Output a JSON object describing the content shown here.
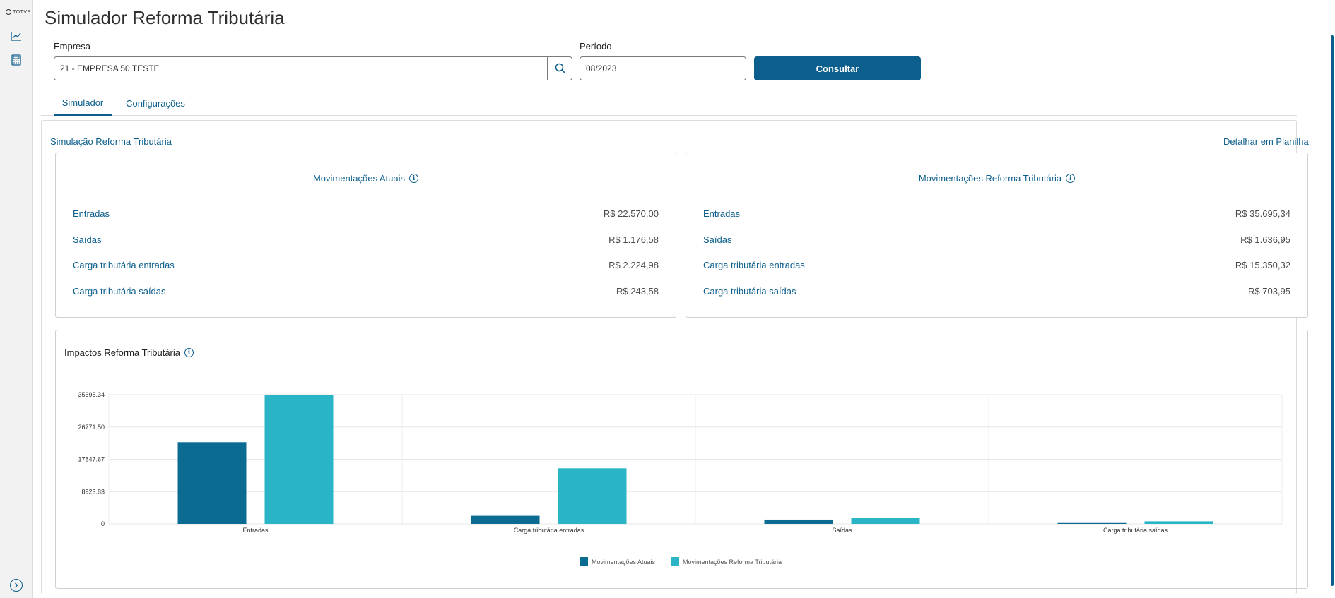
{
  "app": {
    "logo_text": "TOTVS"
  },
  "sidebar": {
    "items": [
      {
        "icon": "chart-line-icon"
      },
      {
        "icon": "calculator-icon"
      }
    ],
    "expand_icon": "chevron-right-icon"
  },
  "page": {
    "title": "Simulador Reforma Tributária"
  },
  "form": {
    "empresa_label": "Empresa",
    "empresa_value": "21 - EMPRESA 50 TESTE",
    "periodo_label": "Período",
    "periodo_value": "08/2023",
    "consultar_label": "Consultar"
  },
  "tabs": [
    {
      "label": "Simulador",
      "active": true
    },
    {
      "label": "Configurações",
      "active": false
    }
  ],
  "simulation": {
    "title": "Simulação Reforma Tributária",
    "detail_link": "Detalhar em Planilha",
    "cards": [
      {
        "title": "Movimentações Atuais",
        "rows": [
          {
            "label": "Entradas",
            "value": "R$ 22.570,00"
          },
          {
            "label": "Saídas",
            "value": "R$ 1.176,58"
          },
          {
            "label": "Carga tributária entradas",
            "value": "R$ 2.224,98"
          },
          {
            "label": "Carga tributária saídas",
            "value": "R$ 243,58"
          }
        ]
      },
      {
        "title": "Movimentações Reforma Tributária",
        "rows": [
          {
            "label": "Entradas",
            "value": "R$ 35.695,34"
          },
          {
            "label": "Saídas",
            "value": "R$ 1.636,95"
          },
          {
            "label": "Carga tributária entradas",
            "value": "R$ 15.350,32"
          },
          {
            "label": "Carga tributária saídas",
            "value": "R$ 703,95"
          }
        ]
      }
    ]
  },
  "chart_data": {
    "type": "bar",
    "title": "Impactos Reforma Tributária",
    "categories": [
      "Entradas",
      "Carga tributária entradas",
      "Saídas",
      "Carga tributária saídas"
    ],
    "series": [
      {
        "name": "Movimentações Atuais",
        "color": "#0b6b93",
        "values": [
          22570.0,
          2224.98,
          1176.58,
          243.58
        ]
      },
      {
        "name": "Movimentações Reforma Tributária",
        "color": "#29b5c6",
        "values": [
          35695.34,
          15350.32,
          1636.95,
          703.95
        ]
      }
    ],
    "yticks": [
      "0",
      "8923.83",
      "17847.67",
      "26771.50",
      "35695.34"
    ],
    "ylim": [
      0,
      35695.34
    ],
    "grid": true,
    "legend": "bottom"
  },
  "colors": {
    "primary": "#0c5f8c",
    "text": "#1d1d1d"
  }
}
